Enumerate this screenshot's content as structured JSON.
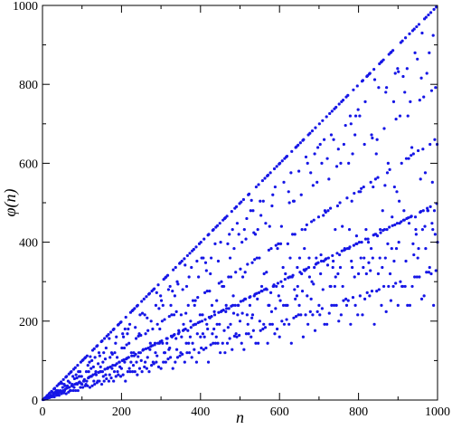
{
  "chart_data": {
    "type": "scatter",
    "title": "",
    "xlabel": "n",
    "ylabel": "φ(n)",
    "xlim": [
      0,
      1000
    ],
    "ylim": [
      0,
      1000
    ],
    "xticks": [
      "0",
      "200",
      "400",
      "600",
      "800",
      "1000"
    ],
    "yticks": [
      "0",
      "200",
      "400",
      "600",
      "800",
      "1000"
    ],
    "grid": false,
    "legend": false,
    "series": [
      {
        "function": "Euler totient φ(n)",
        "n_range": [
          1,
          1000
        ],
        "color": "#1616e6"
      }
    ]
  }
}
